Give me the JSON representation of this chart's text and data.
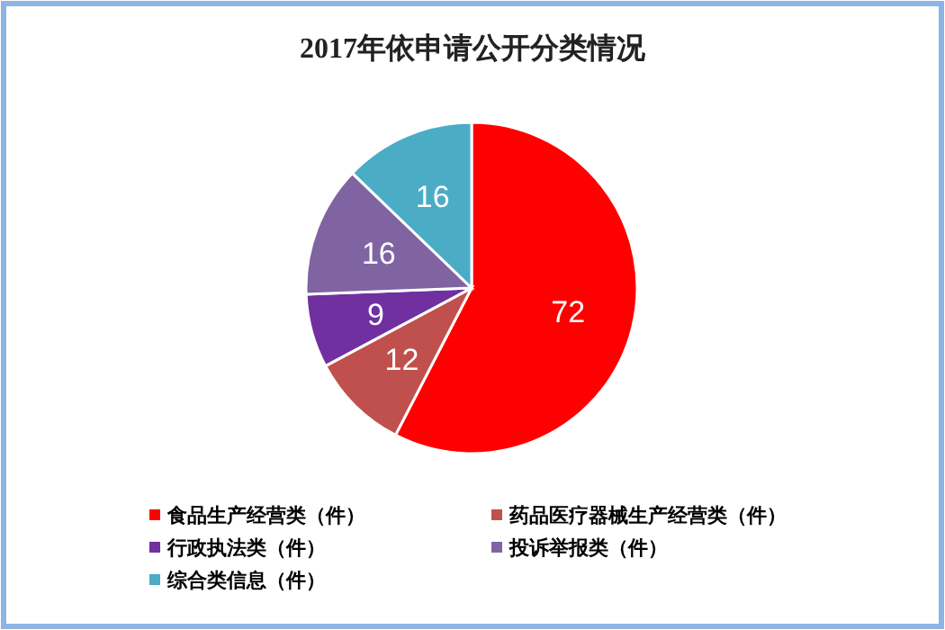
{
  "chart_data": {
    "type": "pie",
    "title": "2017年依申请公开分类情况",
    "categories": [
      "食品生产经营类（件）",
      "药品医疗器械生产经营类（件）",
      "行政执法类（件）",
      "投诉举报类（件）",
      "综合类信息（件）"
    ],
    "values": [
      72,
      12,
      9,
      16,
      16
    ],
    "colors": [
      "#ff0000",
      "#c0504d",
      "#7030a0",
      "#8064a2",
      "#4bacc6"
    ],
    "data_labels": true,
    "legend": "bottom"
  }
}
